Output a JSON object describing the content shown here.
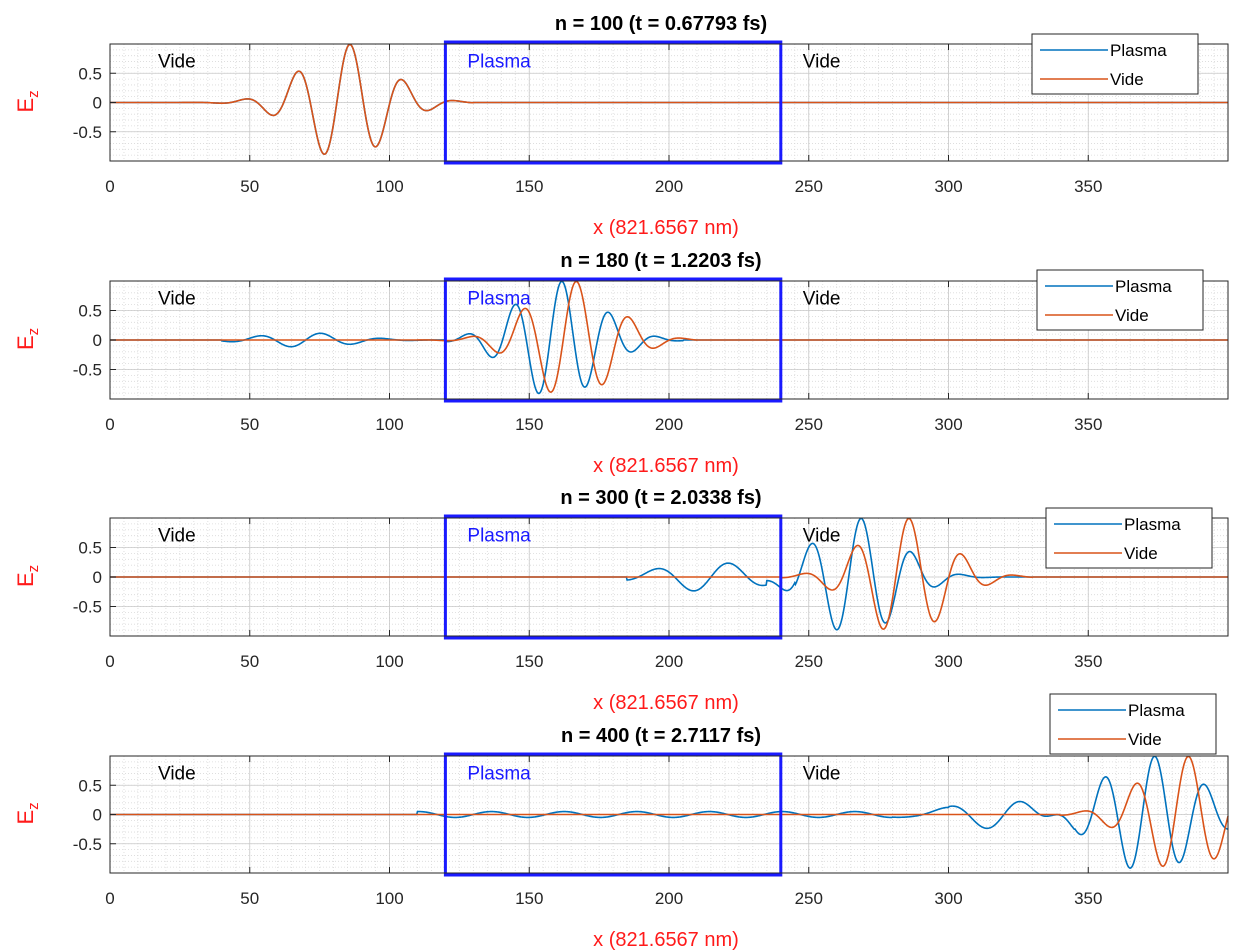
{
  "figure": {
    "background": "#ffffff"
  },
  "chart_data": [
    {
      "type": "line",
      "title": "n = 100 (t = 0.67793 fs)",
      "xlabel": "x (821.6567 nm)",
      "ylabel": "E",
      "ylabel_sub": "z",
      "xlim": [
        0,
        400
      ],
      "ylim": [
        -1,
        1
      ],
      "xticks": [
        "0",
        "50",
        "100",
        "150",
        "200",
        "250",
        "300",
        "350"
      ],
      "yticks": [
        "0.5",
        "0",
        "-0.5"
      ],
      "grid": true,
      "legend_position": "top-right",
      "regions": [
        {
          "label": "Vide",
          "x_start": 0,
          "x_end": 120,
          "color": "#000000"
        },
        {
          "label": "Plasma",
          "x_start": 120,
          "x_end": 240,
          "color": "#1a1aff",
          "box": true
        },
        {
          "label": "Vide",
          "x_start": 240,
          "x_end": 400,
          "color": "#000000"
        }
      ],
      "series": [
        {
          "name": "Plasma",
          "color": "#0072BD",
          "center": 84,
          "sigma": 15,
          "wavelength": 19,
          "support": [
            0,
            130
          ],
          "amplitude": 1.0
        },
        {
          "name": "Vide",
          "color": "#D95319",
          "center": 84,
          "sigma": 15,
          "wavelength": 19,
          "support": [
            0,
            130
          ],
          "amplitude": 1.0
        }
      ]
    },
    {
      "type": "line",
      "title": "n = 180 (t = 1.2203 fs)",
      "xlabel": "x (821.6567 nm)",
      "ylabel": "E",
      "ylabel_sub": "z",
      "xlim": [
        0,
        400
      ],
      "ylim": [
        -1,
        1
      ],
      "xticks": [
        "0",
        "50",
        "100",
        "150",
        "200",
        "250",
        "300",
        "350"
      ],
      "yticks": [
        "0.5",
        "0",
        "-0.5"
      ],
      "grid": true,
      "legend_position": "top-right",
      "regions": [
        {
          "label": "Vide",
          "x_start": 0,
          "x_end": 120,
          "color": "#000000"
        },
        {
          "label": "Plasma",
          "x_start": 120,
          "x_end": 240,
          "color": "#1a1aff",
          "box": true
        },
        {
          "label": "Vide",
          "x_start": 240,
          "x_end": 400,
          "color": "#000000"
        }
      ],
      "series": [
        {
          "name": "Plasma",
          "color": "#0072BD",
          "center": 160,
          "sigma": 15,
          "wavelength": 17,
          "support": [
            120,
            205
          ],
          "amplitude": 1.0,
          "reflection": {
            "center": 70,
            "sigma": 16,
            "wavelength": 22,
            "amplitude": 0.12,
            "support": [
              40,
              120
            ]
          }
        },
        {
          "name": "Vide",
          "color": "#D95319",
          "center": 165,
          "sigma": 15,
          "wavelength": 19,
          "support": [
            110,
            210
          ],
          "amplitude": 1.0
        }
      ]
    },
    {
      "type": "line",
      "title": "n = 300 (t = 2.0338 fs)",
      "xlabel": "x (821.6567 nm)",
      "ylabel": "E",
      "ylabel_sub": "z",
      "xlim": [
        0,
        400
      ],
      "ylim": [
        -1,
        1
      ],
      "xticks": [
        "0",
        "50",
        "100",
        "150",
        "200",
        "250",
        "300",
        "350"
      ],
      "yticks": [
        "0.5",
        "0",
        "-0.5"
      ],
      "grid": true,
      "legend_position": "top-right",
      "regions": [
        {
          "label": "Vide",
          "x_start": 0,
          "x_end": 120,
          "color": "#000000"
        },
        {
          "label": "Plasma",
          "x_start": 120,
          "x_end": 240,
          "color": "#1a1aff",
          "box": true
        },
        {
          "label": "Vide",
          "x_start": 240,
          "x_end": 400,
          "color": "#000000"
        }
      ],
      "series": [
        {
          "name": "Plasma",
          "color": "#0072BD",
          "center": 267,
          "sigma": 15,
          "wavelength": 18,
          "support": [
            235,
            320
          ],
          "amplitude": 1.0,
          "tail": {
            "center": 215,
            "sigma": 18,
            "wavelength": 26,
            "amplitude": 0.25,
            "support": [
              185,
              245
            ]
          }
        },
        {
          "name": "Vide",
          "color": "#D95319",
          "center": 284,
          "sigma": 15,
          "wavelength": 19,
          "support": [
            240,
            330
          ],
          "amplitude": 1.0
        }
      ]
    },
    {
      "type": "line",
      "title": "n = 400 (t = 2.7117 fs)",
      "xlabel": "x (821.6567 nm)",
      "ylabel": "E",
      "ylabel_sub": "z",
      "xlim": [
        0,
        400
      ],
      "ylim": [
        -1,
        1
      ],
      "xticks": [
        "0",
        "50",
        "100",
        "150",
        "200",
        "250",
        "300",
        "350"
      ],
      "yticks": [
        "0.5",
        "0",
        "-0.5"
      ],
      "grid": true,
      "legend_position": "top-right",
      "regions": [
        {
          "label": "Vide",
          "x_start": 0,
          "x_end": 120,
          "color": "#000000"
        },
        {
          "label": "Plasma",
          "x_start": 120,
          "x_end": 240,
          "color": "#1a1aff",
          "box": true
        },
        {
          "label": "Vide",
          "x_start": 240,
          "x_end": 400,
          "color": "#000000"
        }
      ],
      "series": [
        {
          "name": "Plasma",
          "color": "#0072BD",
          "center": 372,
          "sigma": 17,
          "wavelength": 18,
          "support": [
            300,
            400
          ],
          "amplitude": 1.0,
          "tail": {
            "center": 320,
            "sigma": 18,
            "wavelength": 26,
            "amplitude": 0.25,
            "support": [
              280,
              345
            ]
          },
          "ripple": {
            "amplitude": 0.05,
            "wavelength": 26,
            "support": [
              110,
              300
            ]
          }
        },
        {
          "name": "Vide",
          "color": "#D95319",
          "center": 384,
          "sigma": 15,
          "wavelength": 19,
          "support": [
            340,
            400
          ],
          "amplitude": 1.0
        }
      ]
    }
  ]
}
